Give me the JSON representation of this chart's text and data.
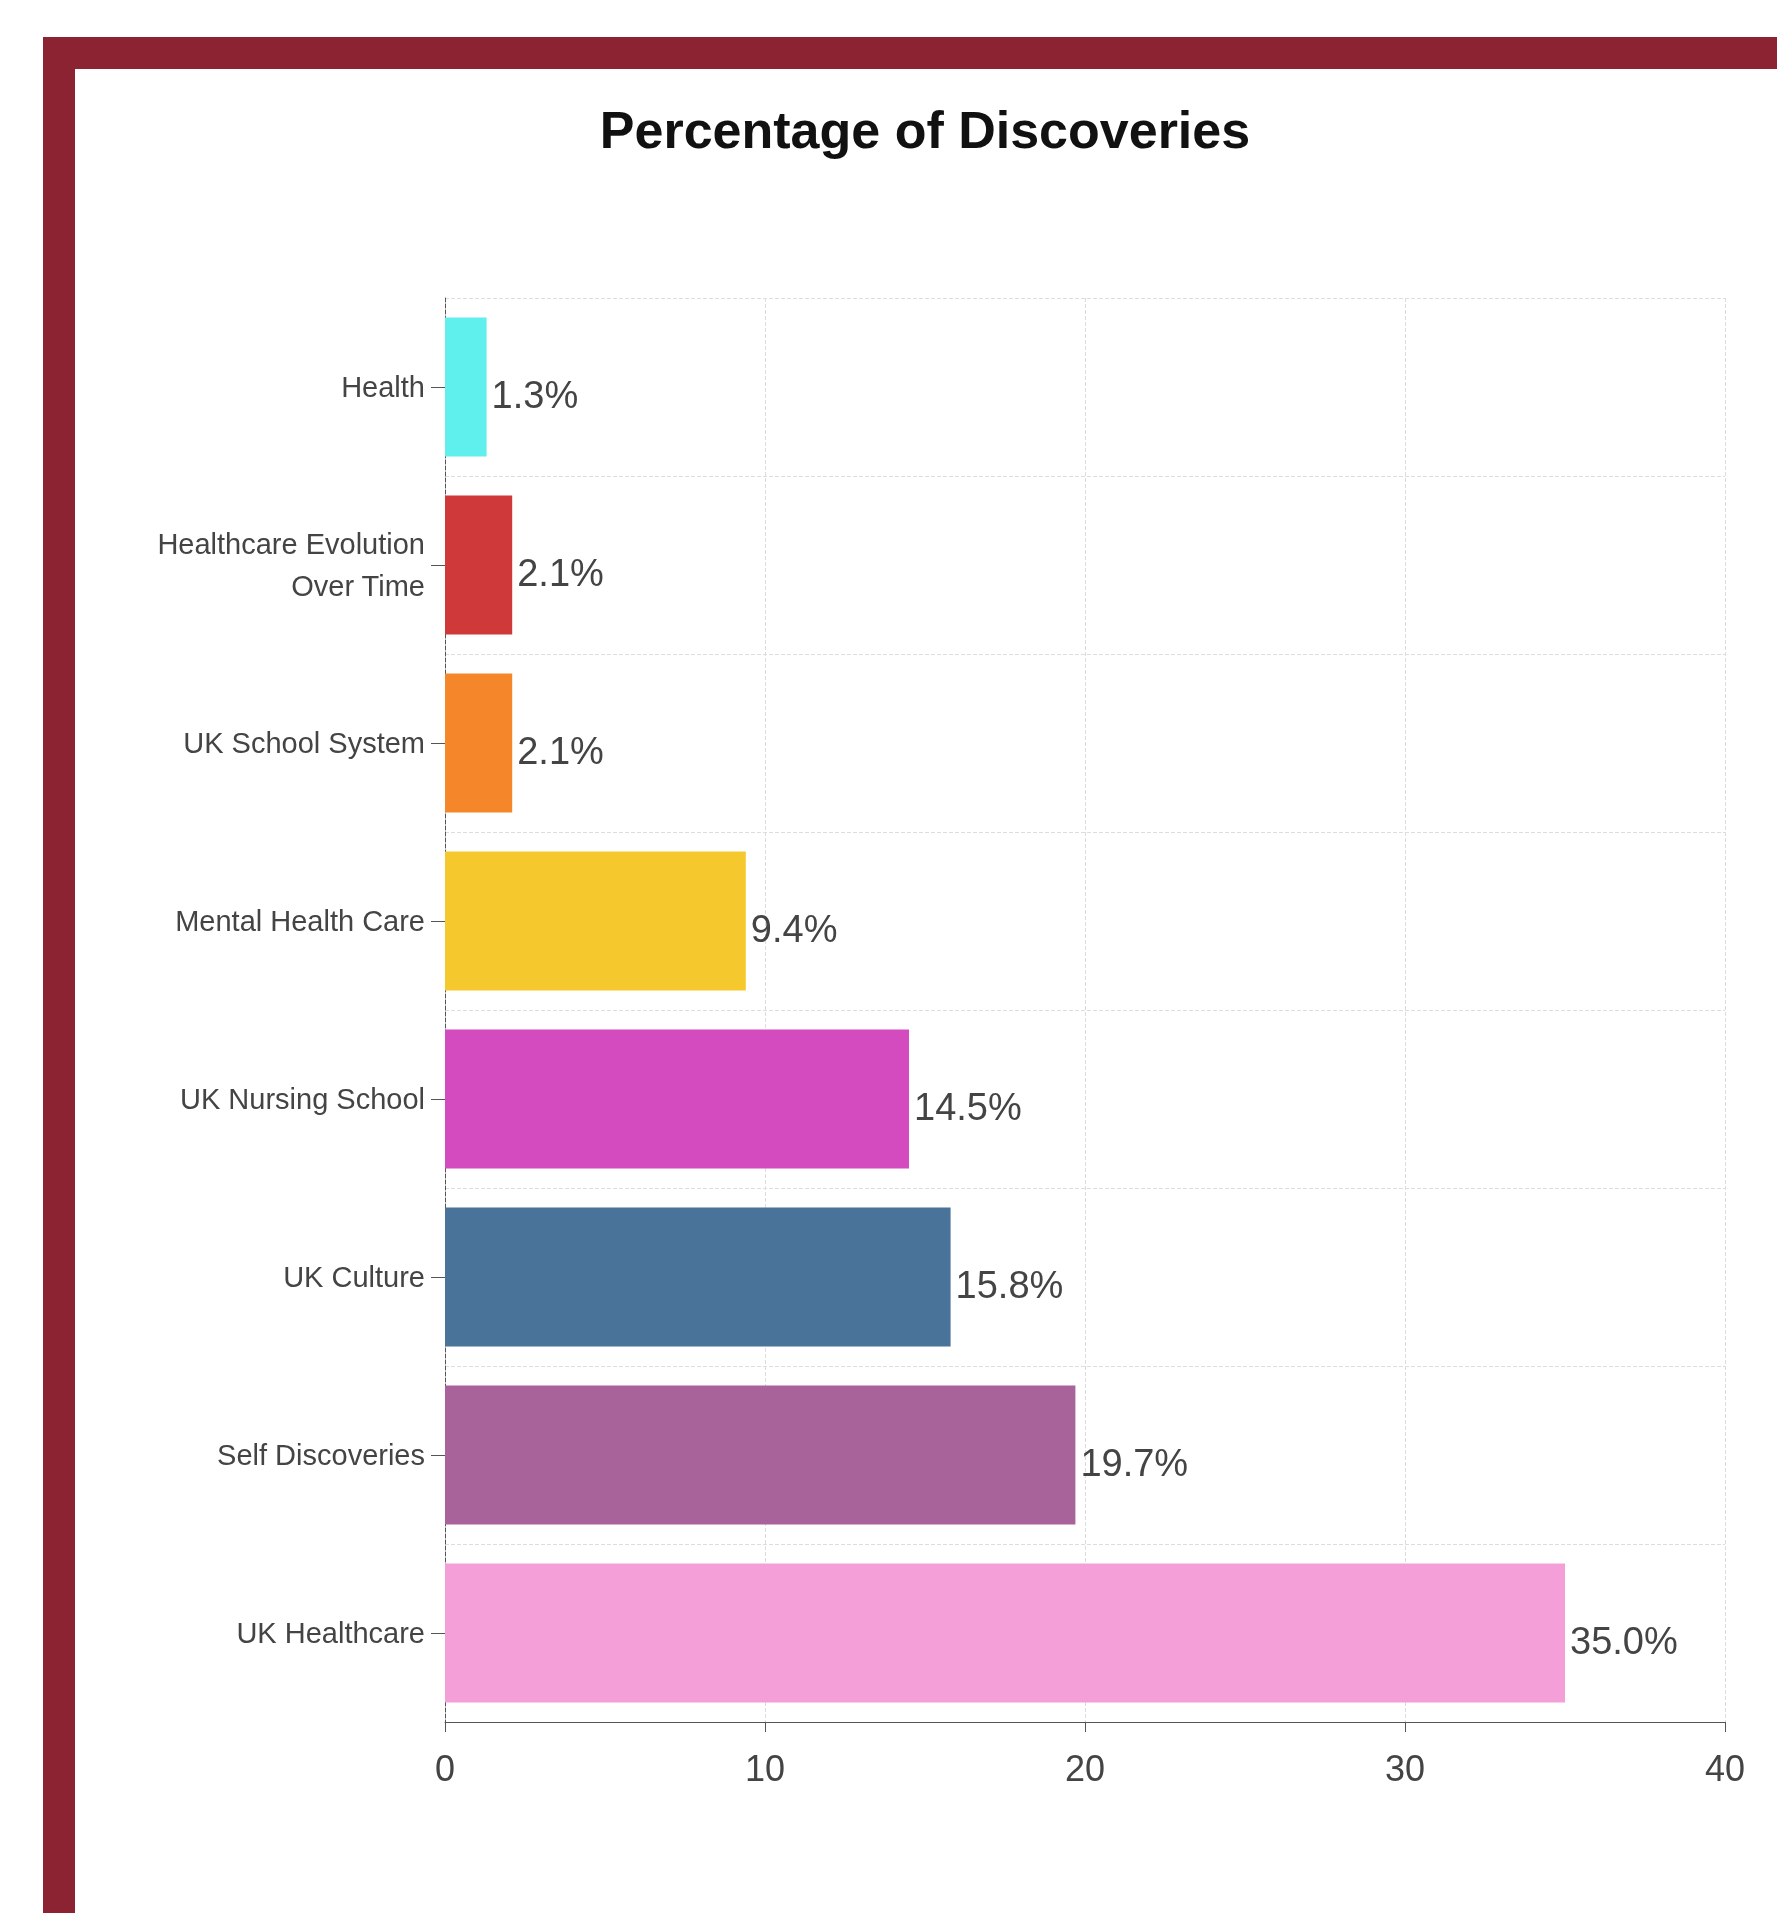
{
  "chart_data": {
    "type": "bar",
    "orientation": "horizontal",
    "title": "Percentage of Discoveries",
    "categories": [
      "Health",
      "Healthcare Evolution Over Time",
      "UK School System",
      "Mental Health Care",
      "UK Nursing School",
      "UK Culture",
      "Self Discoveries",
      "UK Healthcare"
    ],
    "values": [
      1.3,
      2.1,
      2.1,
      9.4,
      14.5,
      15.8,
      19.7,
      35.0
    ],
    "value_labels": [
      "1.3%",
      "2.1%",
      "2.1%",
      "9.4%",
      "14.5%",
      "15.8%",
      "19.7%",
      "35.0%"
    ],
    "colors": [
      "#5ff0ee",
      "#d0393a",
      "#f5872a",
      "#f5c92d",
      "#d44abf",
      "#4a7399",
      "#a8649a",
      "#f59fd9"
    ],
    "xlim": [
      0,
      40
    ],
    "xticks": [
      0,
      10,
      20,
      30,
      40
    ],
    "grid": true
  }
}
